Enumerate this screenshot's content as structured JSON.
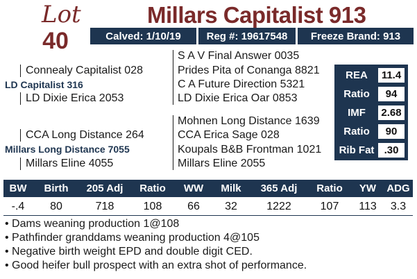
{
  "lot": {
    "word": "Lot",
    "number": "40"
  },
  "bull_name": "Millars Capitalist 913",
  "info": {
    "calved": "Calved: 1/10/19",
    "reg": "Reg #: 19617548",
    "freeze_brand": "Freeze Brand: 913"
  },
  "pedigree": {
    "sire_sire_sire": "S A V Final Answer 0035",
    "sire_sire": "Connealy Capitalist 028",
    "sire_sire_dam": "Prides Pita of Conanga 8821",
    "sire": "LD Capitalist 316",
    "sire_dam_sire": "C A Future Direction 5321",
    "sire_dam": "LD Dixie Erica 2053",
    "sire_dam_dam": "LD Dixie Erica Oar 0853",
    "dam_sire_sire": "Mohnen Long Distance 1639",
    "dam_sire": "CCA Long Distance 264",
    "dam_sire_dam": "CCA Erica Sage 028",
    "dam": "Millars Long Distance 7055",
    "dam_dam_sire": "Koupals B&B Frontman 1021",
    "dam_dam": "Millars Eline 4055",
    "dam_dam_dam": "Millars Eline 2055"
  },
  "carcass": [
    {
      "label": "REA",
      "value": "11.4"
    },
    {
      "label": "Ratio",
      "value": "94"
    },
    {
      "label": "IMF",
      "value": "2.68"
    },
    {
      "label": "Ratio",
      "value": "90"
    },
    {
      "label": "Rib Fat",
      "value": ".30"
    }
  ],
  "performance": {
    "headers": [
      "BW",
      "Birth",
      "205 Adj",
      "Ratio",
      "WW",
      "Milk",
      "365 Adj",
      "Ratio",
      "YW",
      "ADG"
    ],
    "values": [
      "-.4",
      "80",
      "718",
      "108",
      "66",
      "32",
      "1222",
      "107",
      "113",
      "3.3"
    ]
  },
  "notes": [
    "• Dams weaning production 1@108",
    "• Pathfinder granddams weaning production 4@105",
    "• Negative birth weight EPD and double digit CED.",
    "• Good heifer bull prospect with an extra shot of performance."
  ]
}
